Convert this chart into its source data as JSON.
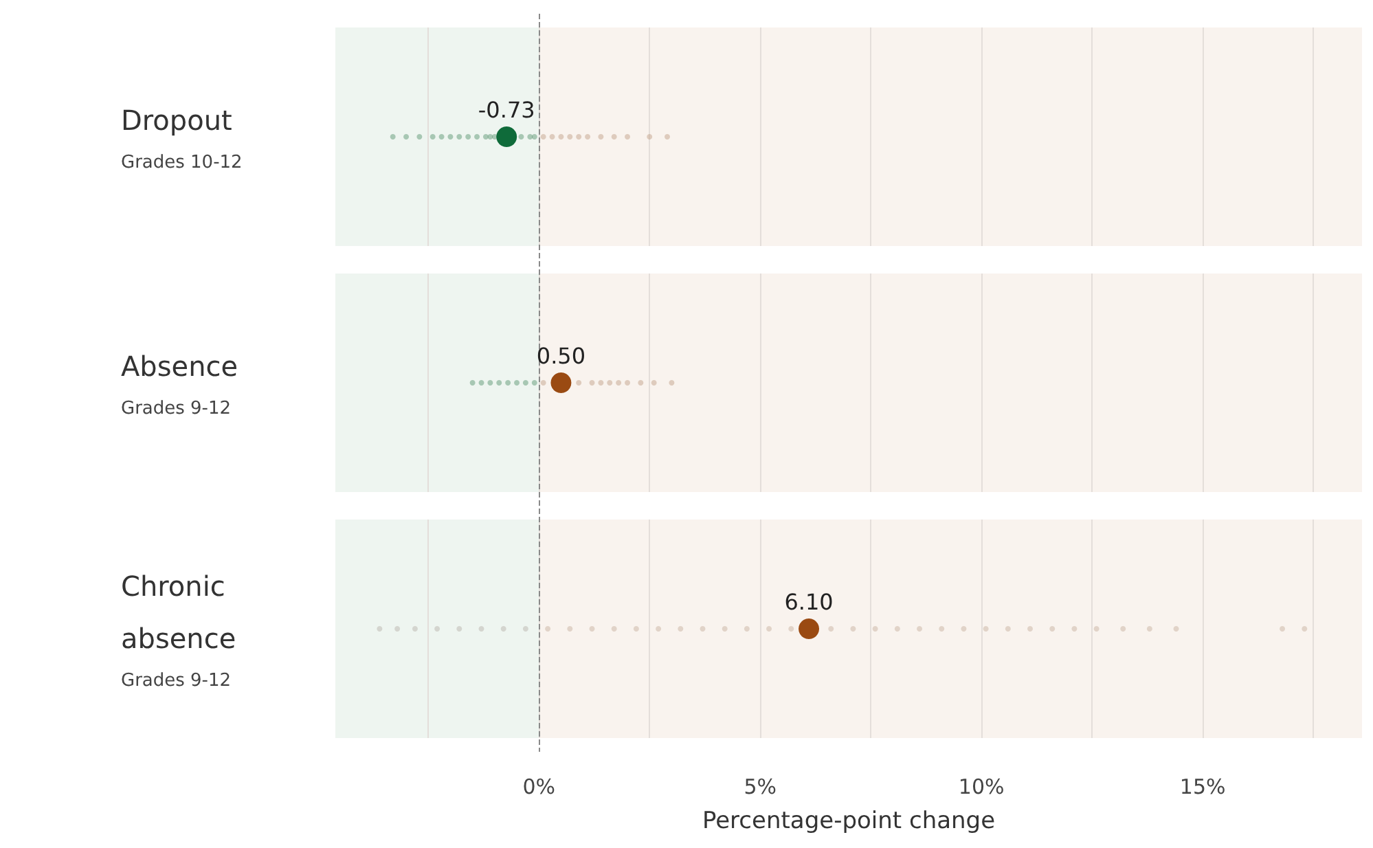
{
  "chart_data": {
    "type": "scatter",
    "orientation": "horizontal",
    "xlabel": "Percentage-point change",
    "categories": [
      "Dropout\nGrades 10-12",
      "Absence\nGrades 9-12",
      "Chronic absence\nGrades 9-12"
    ],
    "xlim": [
      -4.6,
      18.6
    ],
    "xticks": [
      {
        "value": -2.5,
        "label": null
      },
      {
        "value": 0,
        "label": "0%"
      },
      {
        "value": 2.5,
        "label": null
      },
      {
        "value": 5,
        "label": "5%"
      },
      {
        "value": 7.5,
        "label": null
      },
      {
        "value": 10,
        "label": "10%"
      },
      {
        "value": 12.5,
        "label": null
      },
      {
        "value": 15,
        "label": "15%"
      },
      {
        "value": 17.5,
        "label": null
      }
    ],
    "grid": "x",
    "marker": "circle",
    "bands": [
      {
        "axis": "x",
        "from": -4.6,
        "to": 0,
        "color": "#eef5f0"
      },
      {
        "axis": "x",
        "from": 0,
        "to": 18.6,
        "color": "#f9f3ee"
      }
    ],
    "ref_lines": [
      {
        "axis": "x",
        "value": 0,
        "line_style": "dashed",
        "color": "#8a8a8a"
      }
    ],
    "series": [
      {
        "color": "#5f9a76",
        "x": [
          "Dropout\nGrades 10-12",
          "Dropout\nGrades 10-12",
          "Dropout\nGrades 10-12",
          "Dropout\nGrades 10-12",
          "Dropout\nGrades 10-12",
          "Dropout\nGrades 10-12",
          "Dropout\nGrades 10-12",
          "Dropout\nGrades 10-12",
          "Dropout\nGrades 10-12",
          "Dropout\nGrades 10-12",
          "Dropout\nGrades 10-12",
          "Dropout\nGrades 10-12",
          "Dropout\nGrades 10-12",
          "Dropout\nGrades 10-12",
          "Dropout\nGrades 10-12"
        ],
        "values": [
          -3.3,
          -3.0,
          -2.7,
          -2.4,
          -2.2,
          -2.0,
          -1.8,
          -1.6,
          -1.4,
          -1.2,
          -1.1,
          -1.0,
          -0.4,
          -0.2,
          -0.1
        ]
      },
      {
        "color": "#c4a48c",
        "x": [
          "Dropout\nGrades 10-12",
          "Dropout\nGrades 10-12",
          "Dropout\nGrades 10-12",
          "Dropout\nGrades 10-12",
          "Dropout\nGrades 10-12",
          "Dropout\nGrades 10-12",
          "Dropout\nGrades 10-12",
          "Dropout\nGrades 10-12",
          "Dropout\nGrades 10-12",
          "Dropout\nGrades 10-12",
          "Dropout\nGrades 10-12"
        ],
        "values": [
          0.1,
          0.3,
          0.5,
          0.7,
          0.9,
          1.1,
          1.4,
          1.7,
          2.0,
          2.5,
          2.9
        ]
      },
      {
        "color": "#5f9a76",
        "x": [
          "Absence\nGrades 9-12",
          "Absence\nGrades 9-12",
          "Absence\nGrades 9-12",
          "Absence\nGrades 9-12",
          "Absence\nGrades 9-12",
          "Absence\nGrades 9-12",
          "Absence\nGrades 9-12",
          "Absence\nGrades 9-12"
        ],
        "values": [
          -1.5,
          -1.3,
          -1.1,
          -0.9,
          -0.7,
          -0.5,
          -0.3,
          -0.1
        ]
      },
      {
        "color": "#c4a48c",
        "x": [
          "Absence\nGrades 9-12",
          "Absence\nGrades 9-12",
          "Absence\nGrades 9-12",
          "Absence\nGrades 9-12",
          "Absence\nGrades 9-12",
          "Absence\nGrades 9-12",
          "Absence\nGrades 9-12",
          "Absence\nGrades 9-12",
          "Absence\nGrades 9-12",
          "Absence\nGrades 9-12"
        ],
        "values": [
          0.1,
          0.9,
          1.2,
          1.4,
          1.6,
          1.8,
          2.0,
          2.3,
          2.6,
          3.0
        ]
      },
      {
        "color": "#b9b6ad",
        "x": [
          "Chronic absence\nGrades 9-12",
          "Chronic absence\nGrades 9-12",
          "Chronic absence\nGrades 9-12",
          "Chronic absence\nGrades 9-12",
          "Chronic absence\nGrades 9-12",
          "Chronic absence\nGrades 9-12",
          "Chronic absence\nGrades 9-12",
          "Chronic absence\nGrades 9-12"
        ],
        "values": [
          -3.6,
          -3.2,
          -2.8,
          -2.3,
          -1.8,
          -1.3,
          -0.8,
          -0.3
        ]
      },
      {
        "color": "#c9b3a2",
        "x": [
          "Chronic absence\nGrades 9-12",
          "Chronic absence\nGrades 9-12",
          "Chronic absence\nGrades 9-12",
          "Chronic absence\nGrades 9-12",
          "Chronic absence\nGrades 9-12",
          "Chronic absence\nGrades 9-12",
          "Chronic absence\nGrades 9-12",
          "Chronic absence\nGrades 9-12",
          "Chronic absence\nGrades 9-12",
          "Chronic absence\nGrades 9-12",
          "Chronic absence\nGrades 9-12",
          "Chronic absence\nGrades 9-12",
          "Chronic absence\nGrades 9-12",
          "Chronic absence\nGrades 9-12",
          "Chronic absence\nGrades 9-12",
          "Chronic absence\nGrades 9-12",
          "Chronic absence\nGrades 9-12",
          "Chronic absence\nGrades 9-12",
          "Chronic absence\nGrades 9-12",
          "Chronic absence\nGrades 9-12",
          "Chronic absence\nGrades 9-12",
          "Chronic absence\nGrades 9-12",
          "Chronic absence\nGrades 9-12",
          "Chronic absence\nGrades 9-12",
          "Chronic absence\nGrades 9-12",
          "Chronic absence\nGrades 9-12",
          "Chronic absence\nGrades 9-12",
          "Chronic absence\nGrades 9-12",
          "Chronic absence\nGrades 9-12",
          "Chronic absence\nGrades 9-12"
        ],
        "values": [
          0.2,
          0.7,
          1.2,
          1.7,
          2.2,
          2.7,
          3.2,
          3.7,
          4.2,
          4.7,
          5.2,
          5.7,
          6.6,
          7.1,
          7.6,
          8.1,
          8.6,
          9.1,
          9.6,
          10.1,
          10.6,
          11.1,
          11.6,
          12.1,
          12.6,
          13.2,
          13.8,
          14.4,
          16.8,
          17.3
        ]
      },
      {
        "colors": [
          "#0f6b3a",
          "#9a4a12",
          "#9a4a12"
        ],
        "x": [
          "Dropout\nGrades 10-12",
          "Absence\nGrades 9-12",
          "Chronic absence\nGrades 9-12"
        ],
        "values": [
          -0.73,
          0.5,
          6.1
        ],
        "value_labels": [
          "-0.73",
          "0.50",
          "6.10"
        ]
      }
    ]
  }
}
